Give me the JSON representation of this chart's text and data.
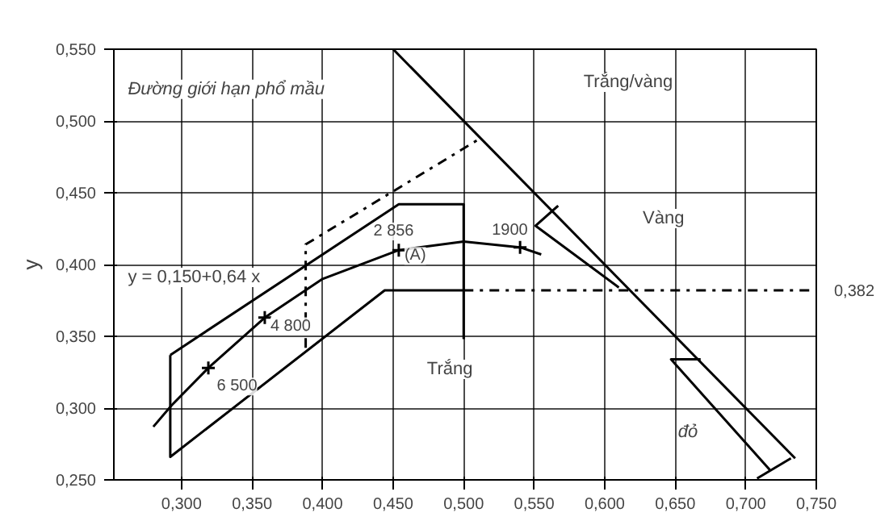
{
  "chart_data": {
    "type": "line",
    "ylabel": "y",
    "xlim": [
      0.252,
      0.75
    ],
    "ylim": [
      0.25,
      0.55
    ],
    "xticks": [
      {
        "value": 0.3,
        "label": "0,300"
      },
      {
        "value": 0.35,
        "label": "0,350"
      },
      {
        "value": 0.4,
        "label": "0,400"
      },
      {
        "value": 0.45,
        "label": "0,450"
      },
      {
        "value": 0.5,
        "label": "0,500"
      },
      {
        "value": 0.55,
        "label": "0,550"
      },
      {
        "value": 0.6,
        "label": "0,600"
      },
      {
        "value": 0.65,
        "label": "0,650"
      },
      {
        "value": 0.7,
        "label": "0,700"
      },
      {
        "value": 0.75,
        "label": "0,750"
      }
    ],
    "yticks": [
      {
        "value": 0.25,
        "label": "0,250"
      },
      {
        "value": 0.3,
        "label": "0,300"
      },
      {
        "value": 0.35,
        "label": "0,350"
      },
      {
        "value": 0.4,
        "label": "0,400"
      },
      {
        "value": 0.45,
        "label": "0,450"
      },
      {
        "value": 0.5,
        "label": "0,500"
      },
      {
        "value": 0.55,
        "label": "0,550"
      }
    ],
    "grid": true,
    "series": [
      {
        "color": "#000000",
        "x": [
          0.45,
          0.735
        ],
        "values": [
          0.55,
          0.265
        ]
      },
      {
        "color": "#000000",
        "x": [
          0.292,
          0.454,
          0.5,
          0.5
        ],
        "values": [
          0.337,
          0.442,
          0.442,
          0.348
        ]
      },
      {
        "color": "#000000",
        "x": [
          0.292,
          0.292,
          0.444,
          0.5
        ],
        "values": [
          0.337,
          0.266,
          0.382,
          0.382
        ]
      },
      {
        "color": "#000000",
        "line_style": "dashdot",
        "x": [
          0.388,
          0.388,
          0.512
        ],
        "values": [
          0.342,
          0.414,
          0.488
        ]
      },
      {
        "color": "#000000",
        "line_style": "dashdot",
        "x": [
          0.5,
          0.75
        ],
        "values": [
          0.382,
          0.382
        ]
      },
      {
        "color": "#000000",
        "x": [
          0.28,
          0.293,
          0.319,
          0.359,
          0.4,
          0.454,
          0.5,
          0.54,
          0.555
        ],
        "values": [
          0.287,
          0.302,
          0.328,
          0.363,
          0.39,
          0.41,
          0.416,
          0.412,
          0.407
        ]
      },
      {
        "type": "scatter",
        "color": "#000000",
        "marker": "cross",
        "x": [
          0.319,
          0.359,
          0.454,
          0.54
        ],
        "values": [
          0.328,
          0.363,
          0.41,
          0.412
        ]
      },
      {
        "color": "#000000",
        "x": [
          0.567,
          0.551,
          0.61
        ],
        "values": [
          0.441,
          0.427,
          0.384
        ]
      },
      {
        "color": "#000000",
        "x": [
          0.668,
          0.647,
          0.717
        ],
        "values": [
          0.334,
          0.334,
          0.257
        ]
      },
      {
        "color": "#000000",
        "x": [
          0.708,
          0.732
        ],
        "values": [
          0.251,
          0.265
        ]
      }
    ],
    "annotations": [
      "Đường giới hạn phổ mầu",
      "Trắng/vàng",
      "Vàng",
      "Trắng",
      "đỏ",
      "y = 0,150+0,64 x",
      {
        "text": "2 856",
        "x": 0.454,
        "y": 0.41
      },
      {
        "text": "(A)",
        "x": 0.454,
        "y": 0.41
      },
      {
        "text": "4 800",
        "x": 0.359,
        "y": 0.363
      },
      {
        "text": "6 500",
        "x": 0.319,
        "y": 0.328
      },
      {
        "text": "1900",
        "x": 0.54,
        "y": 0.412
      },
      {
        "text": "0,382",
        "x": 0.75,
        "y": 0.382
      }
    ]
  }
}
